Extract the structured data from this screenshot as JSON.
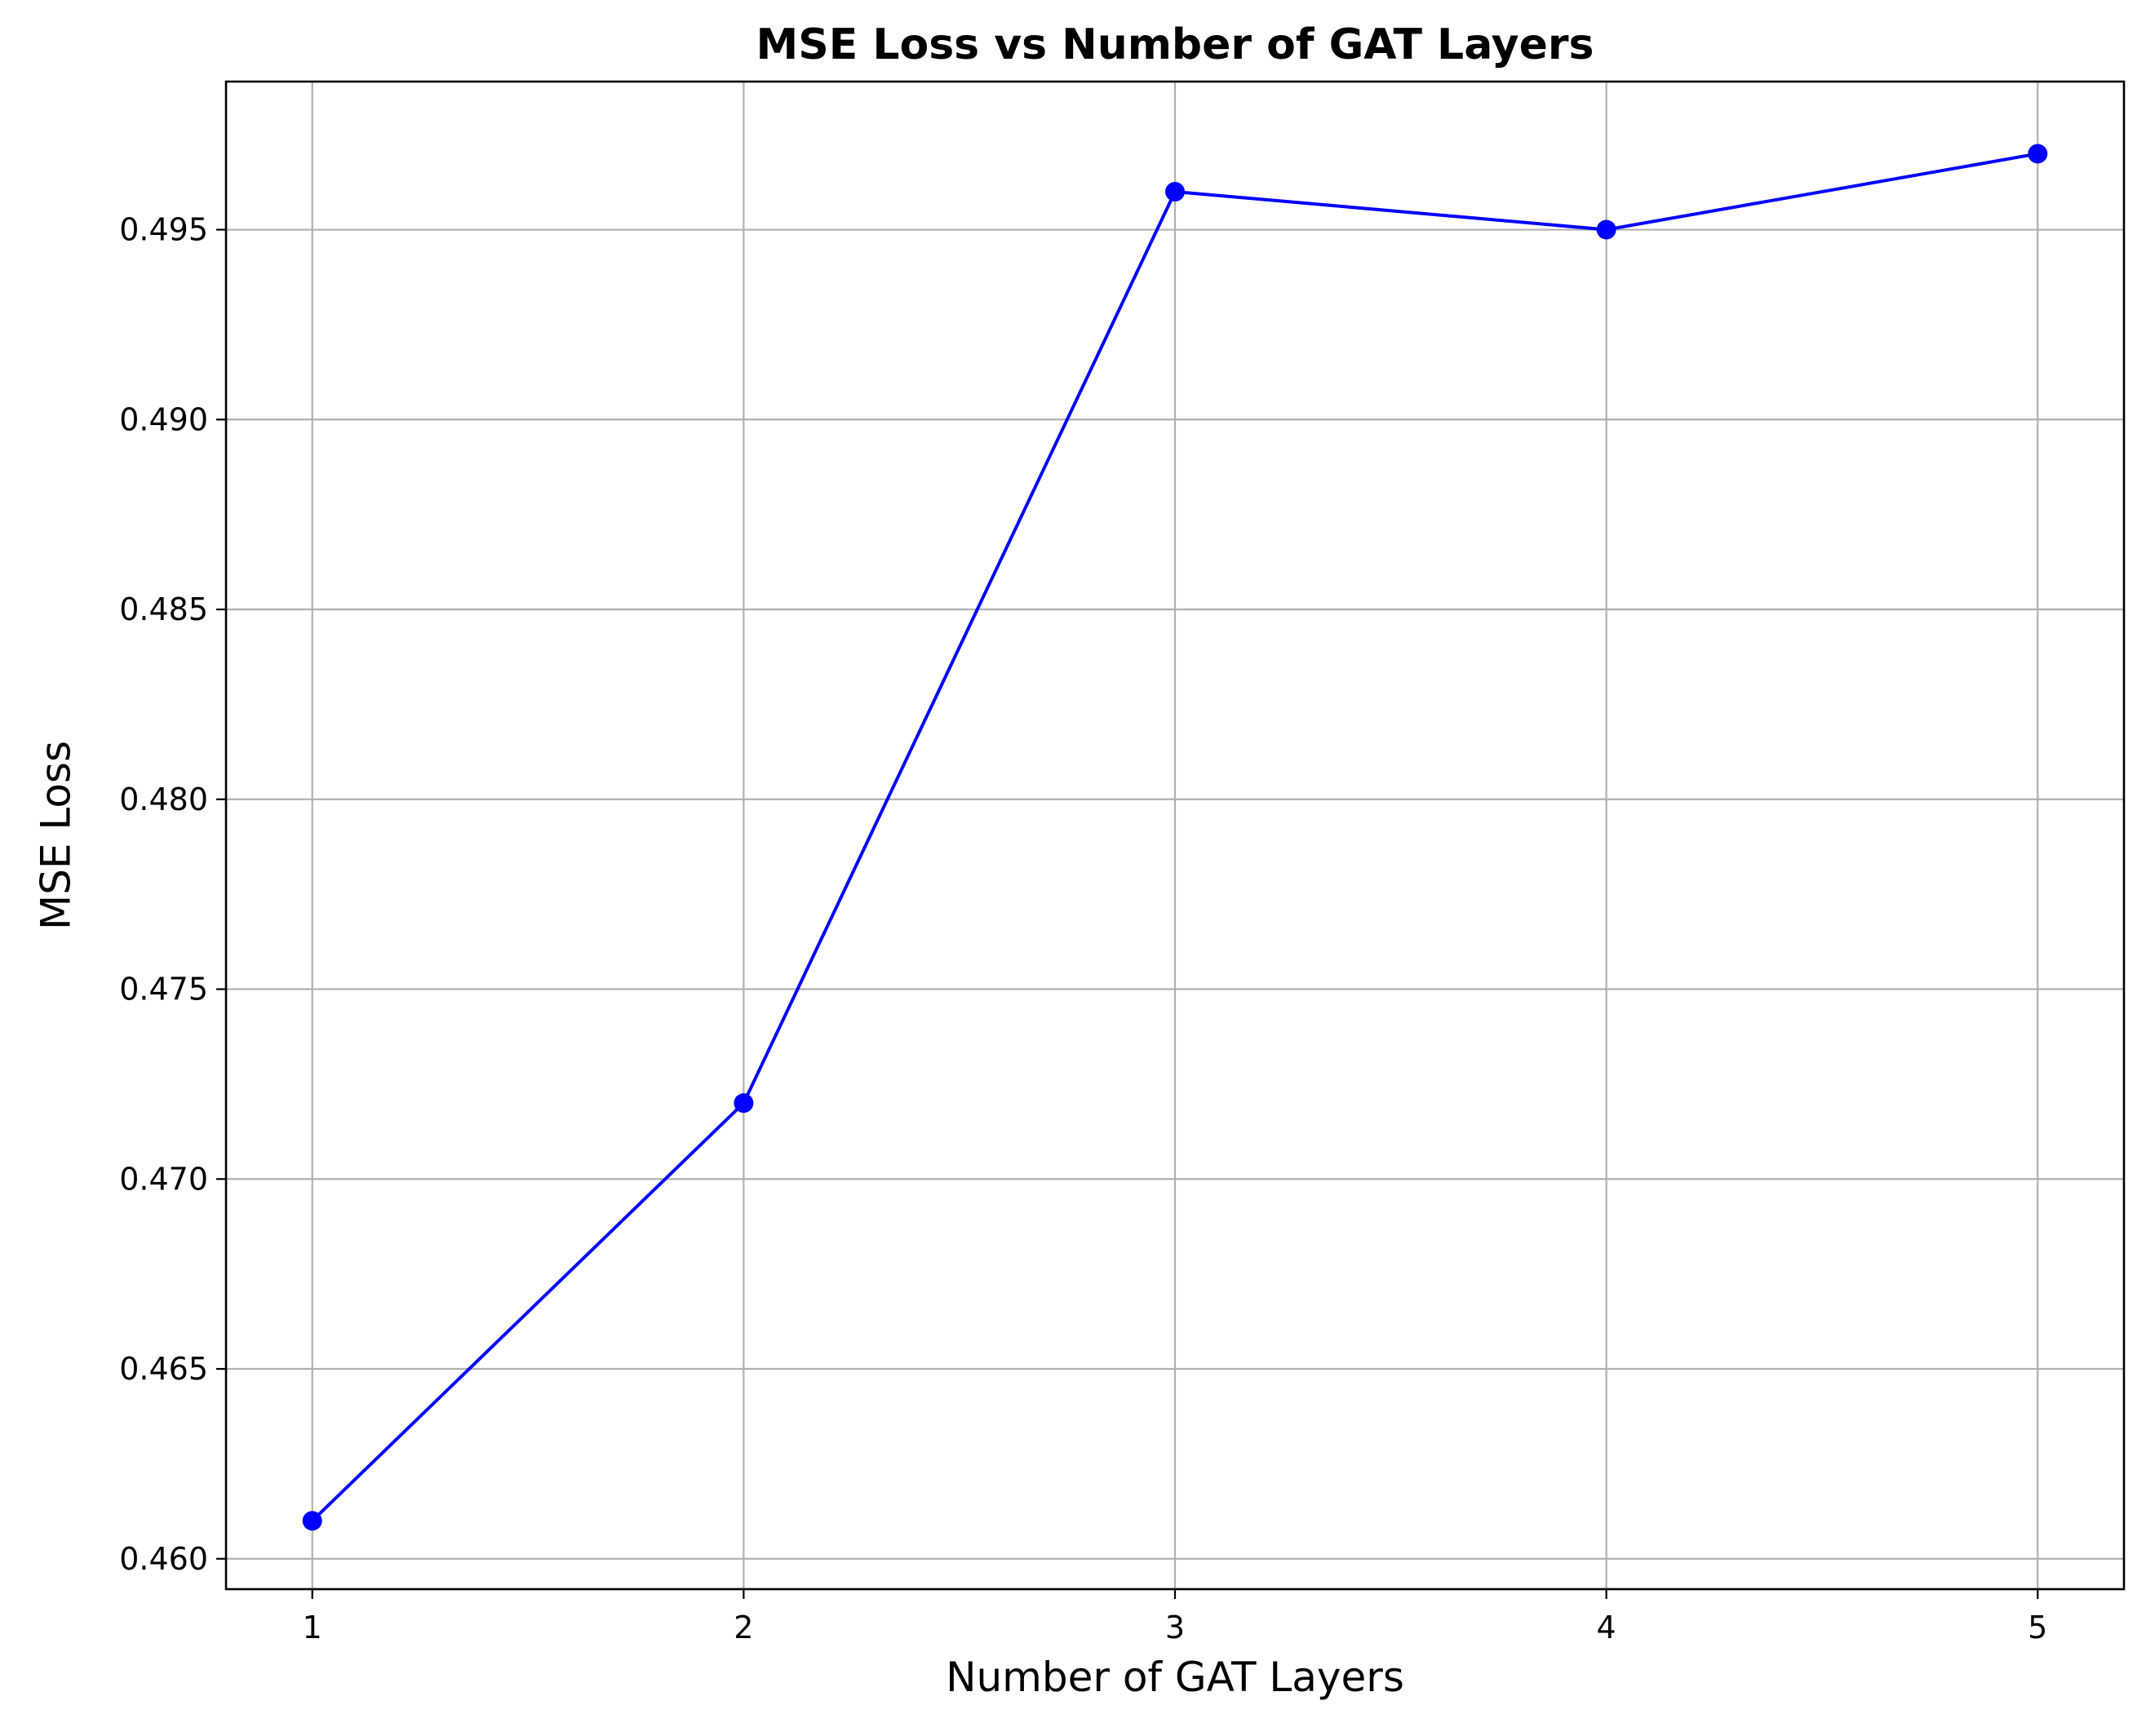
{
  "chart_data": {
    "type": "line",
    "title": "MSE Loss vs Number of GAT Layers",
    "xlabel": "Number of GAT Layers",
    "ylabel": "MSE Loss",
    "x": [
      1,
      2,
      3,
      4,
      5
    ],
    "series": [
      {
        "values": [
          0.461,
          0.472,
          0.496,
          0.495,
          0.497
        ],
        "color": "#0000ff",
        "marker": "circle"
      }
    ],
    "xlim": [
      0.8,
      5.2
    ],
    "ylim": [
      0.4592,
      0.4989
    ],
    "xticks": [
      {
        "value": 1,
        "label": "1"
      },
      {
        "value": 2,
        "label": "2"
      },
      {
        "value": 3,
        "label": "3"
      },
      {
        "value": 4,
        "label": "4"
      },
      {
        "value": 5,
        "label": "5"
      }
    ],
    "yticks": [
      {
        "value": 0.46,
        "label": "0.460"
      },
      {
        "value": 0.465,
        "label": "0.465"
      },
      {
        "value": 0.47,
        "label": "0.470"
      },
      {
        "value": 0.475,
        "label": "0.475"
      },
      {
        "value": 0.48,
        "label": "0.480"
      },
      {
        "value": 0.485,
        "label": "0.485"
      },
      {
        "value": 0.49,
        "label": "0.490"
      },
      {
        "value": 0.495,
        "label": "0.495"
      }
    ],
    "grid": true
  }
}
